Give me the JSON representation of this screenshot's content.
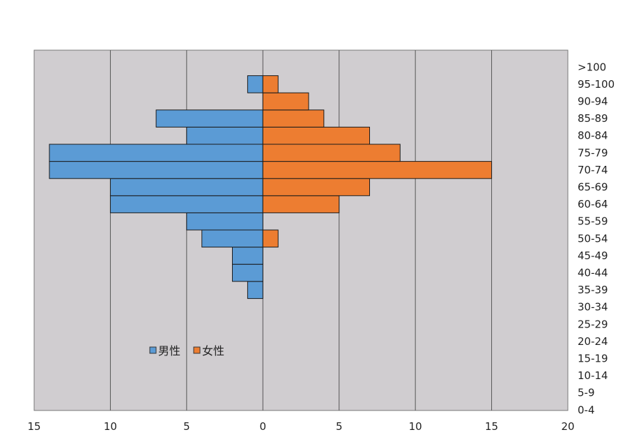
{
  "chart_data": {
    "type": "bar",
    "orientation": "horizontal",
    "layout": "population-pyramid",
    "title": "",
    "xlabel": "",
    "ylabel": "",
    "categories": [
      "0-4",
      "5-9",
      "10-14",
      "15-19",
      "20-24",
      "25-29",
      "30-34",
      "35-39",
      "40-44",
      "45-49",
      "50-54",
      "55-59",
      "60-64",
      "65-69",
      "70-74",
      "75-79",
      "80-84",
      "85-89",
      "90-94",
      "95-100",
      ">100"
    ],
    "series": [
      {
        "name": "男性",
        "color": "#5b9bd5",
        "direction": "left",
        "values": [
          0,
          0,
          0,
          0,
          0,
          0,
          0,
          1,
          2,
          2,
          4,
          5,
          10,
          10,
          14,
          14,
          5,
          7,
          0,
          1,
          0
        ]
      },
      {
        "name": "女性",
        "color": "#ed7d31",
        "direction": "right",
        "values": [
          0,
          0,
          0,
          0,
          0,
          0,
          0,
          0,
          0,
          0,
          1,
          0,
          5,
          7,
          15,
          9,
          7,
          4,
          3,
          1,
          0
        ]
      }
    ],
    "xlim": [
      -15,
      20
    ],
    "x_ticks": [
      -15,
      -10,
      -5,
      0,
      5,
      10,
      15,
      20
    ],
    "x_tick_labels": [
      "15",
      "10",
      "5",
      "0",
      "5",
      "10",
      "15",
      "20"
    ],
    "grid": "vertical",
    "legend": "lower-left inside plot",
    "plot_background": "#d0cdd0"
  }
}
